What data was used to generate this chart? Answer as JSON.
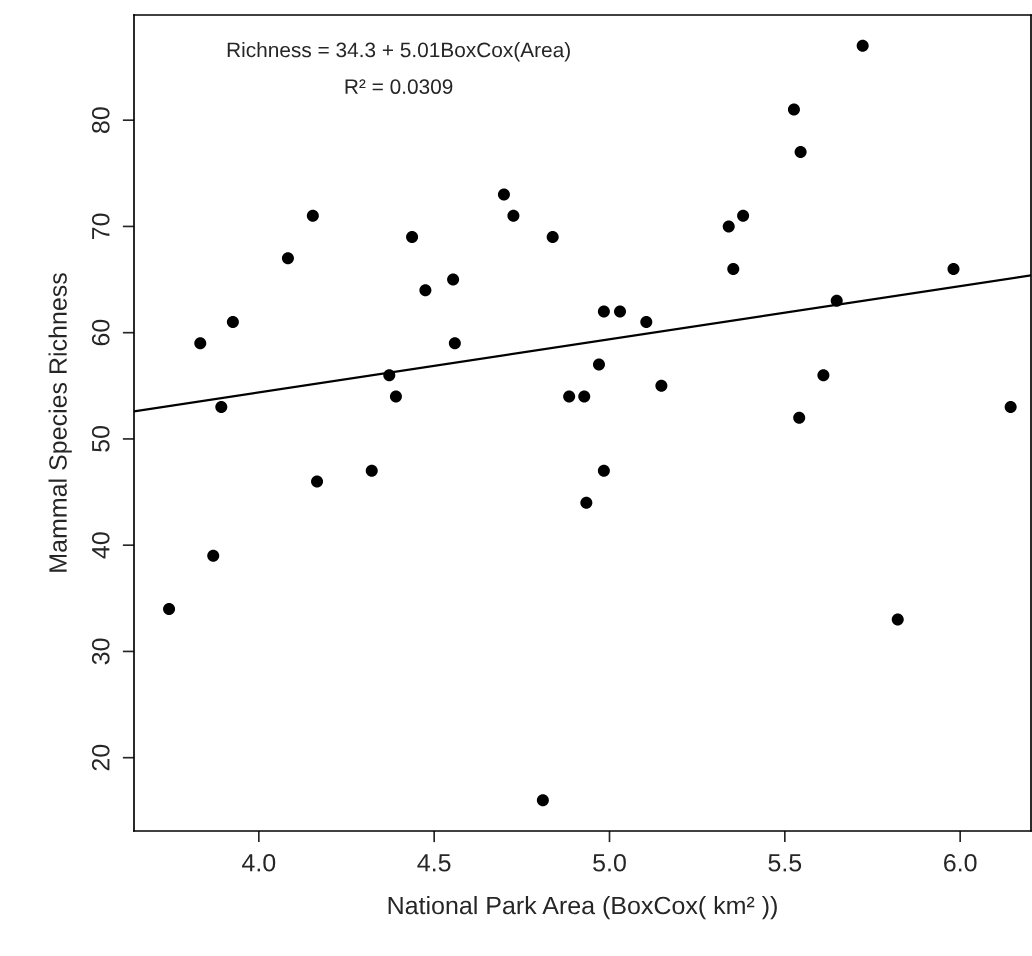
{
  "chart_data": {
    "type": "scatter",
    "xlabel": "National Park Area (BoxCox( km² ))",
    "ylabel": "Mammal Species Richness",
    "annotations": [
      "Richness = 34.3 + 5.01BoxCox(Area)",
      "R² = 0.0309"
    ],
    "xlim": [
      3.644,
      6.202
    ],
    "xticks": [
      {
        "value": 4,
        "label": "4.0"
      },
      {
        "value": 4.5,
        "label": "4.5"
      },
      {
        "value": 5,
        "label": "5.0"
      },
      {
        "value": 5.5,
        "label": "5.5"
      },
      {
        "value": 6,
        "label": "6.0"
      }
    ],
    "ylim": [
      13.1,
      89.9
    ],
    "yticks": [
      20,
      30,
      40,
      50,
      60,
      70,
      80
    ],
    "grid": false,
    "legend": false,
    "series": [
      {
        "marker": "circle",
        "color": "#000000",
        "x": [
          3.744,
          3.833,
          3.926,
          3.893,
          3.87,
          4.083,
          4.154,
          4.166,
          4.322,
          4.372,
          4.391,
          4.437,
          4.475,
          4.554,
          4.559,
          4.699,
          4.726,
          4.838,
          4.885,
          4.928,
          4.934,
          4.97,
          4.984,
          5.03,
          4.984,
          5.105,
          5.148,
          5.34,
          5.381,
          5.353,
          5.526,
          5.545,
          5.722,
          5.648,
          5.61,
          5.541,
          5.981,
          6.144,
          4.81,
          5.822
        ],
        "values": [
          34,
          59,
          61,
          53,
          39,
          67,
          71,
          46,
          47,
          56,
          54,
          69,
          64,
          65,
          59,
          73,
          71,
          69,
          54,
          54,
          44,
          57,
          62,
          62,
          47,
          61,
          55,
          70,
          71,
          66,
          81,
          77,
          87,
          63,
          56,
          52,
          66,
          53,
          16,
          33
        ]
      },
      {
        "type": "line",
        "marker": "none",
        "color": "#000000",
        "x": [
          3.644,
          6.202
        ],
        "values": [
          52.6,
          65.4
        ]
      }
    ]
  }
}
